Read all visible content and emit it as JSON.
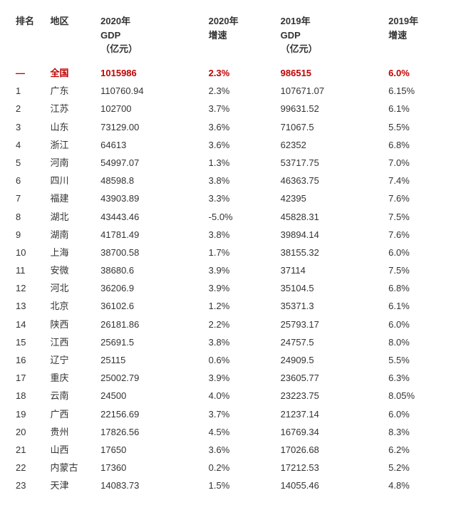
{
  "table": {
    "columns": [
      {
        "key": "rank",
        "label": "排名",
        "class": "col-rank"
      },
      {
        "key": "region",
        "label": "地区",
        "class": "col-region"
      },
      {
        "key": "gdp2020",
        "label": "2020年\nGDP\n（亿元）",
        "class": "col-gdp20"
      },
      {
        "key": "growth2020",
        "label": "2020年\n增速",
        "class": "col-growth20"
      },
      {
        "key": "gdp2019",
        "label": "2019年\nGDP\n（亿元）",
        "class": "col-gdp19"
      },
      {
        "key": "growth2019",
        "label": "2019年\n增速",
        "class": "col-growth19"
      }
    ],
    "highlight_row": {
      "rank": "—",
      "region": "全国",
      "gdp2020": "1015986",
      "growth2020": "2.3%",
      "gdp2019": "986515",
      "growth2019": "6.0%"
    },
    "rows": [
      {
        "rank": "1",
        "region": "广东",
        "gdp2020": "110760.94",
        "growth2020": "2.3%",
        "gdp2019": "107671.07",
        "growth2019": "6.15%"
      },
      {
        "rank": "2",
        "region": "江苏",
        "gdp2020": "102700",
        "growth2020": "3.7%",
        "gdp2019": "99631.52",
        "growth2019": "6.1%"
      },
      {
        "rank": "3",
        "region": "山东",
        "gdp2020": "73129.00",
        "growth2020": "3.6%",
        "gdp2019": "71067.5",
        "growth2019": "5.5%"
      },
      {
        "rank": "4",
        "region": "浙江",
        "gdp2020": "64613",
        "growth2020": "3.6%",
        "gdp2019": "62352",
        "growth2019": "6.8%"
      },
      {
        "rank": "5",
        "region": "河南",
        "gdp2020": "54997.07",
        "growth2020": "1.3%",
        "gdp2019": "53717.75",
        "growth2019": "7.0%"
      },
      {
        "rank": "6",
        "region": "四川",
        "gdp2020": "48598.8",
        "growth2020": "3.8%",
        "gdp2019": "46363.75",
        "growth2019": "7.4%"
      },
      {
        "rank": "7",
        "region": "福建",
        "gdp2020": "43903.89",
        "growth2020": "3.3%",
        "gdp2019": "42395",
        "growth2019": "7.6%"
      },
      {
        "rank": "8",
        "region": "湖北",
        "gdp2020": "43443.46",
        "growth2020": "-5.0%",
        "gdp2019": "45828.31",
        "growth2019": "7.5%"
      },
      {
        "rank": "9",
        "region": "湖南",
        "gdp2020": "41781.49",
        "growth2020": "3.8%",
        "gdp2019": "39894.14",
        "growth2019": "7.6%"
      },
      {
        "rank": "10",
        "region": "上海",
        "gdp2020": "38700.58",
        "growth2020": "1.7%",
        "gdp2019": "38155.32",
        "growth2019": "6.0%"
      },
      {
        "rank": "11",
        "region": "安微",
        "gdp2020": "38680.6",
        "growth2020": "3.9%",
        "gdp2019": "37114",
        "growth2019": "7.5%"
      },
      {
        "rank": "12",
        "region": "河北",
        "gdp2020": "36206.9",
        "growth2020": "3.9%",
        "gdp2019": "35104.5",
        "growth2019": "6.8%"
      },
      {
        "rank": "13",
        "region": "北京",
        "gdp2020": "36102.6",
        "growth2020": "1.2%",
        "gdp2019": "35371.3",
        "growth2019": "6.1%"
      },
      {
        "rank": "14",
        "region": "陕西",
        "gdp2020": "26181.86",
        "growth2020": "2.2%",
        "gdp2019": "25793.17",
        "growth2019": "6.0%"
      },
      {
        "rank": "15",
        "region": "江西",
        "gdp2020": "25691.5",
        "growth2020": "3.8%",
        "gdp2019": "24757.5",
        "growth2019": "8.0%"
      },
      {
        "rank": "16",
        "region": "辽宁",
        "gdp2020": "25115",
        "growth2020": "0.6%",
        "gdp2019": "24909.5",
        "growth2019": "5.5%"
      },
      {
        "rank": "17",
        "region": "重庆",
        "gdp2020": "25002.79",
        "growth2020": "3.9%",
        "gdp2019": "23605.77",
        "growth2019": "6.3%"
      },
      {
        "rank": "18",
        "region": "云南",
        "gdp2020": "24500",
        "growth2020": "4.0%",
        "gdp2019": "23223.75",
        "growth2019": "8.05%"
      },
      {
        "rank": "19",
        "region": "广西",
        "gdp2020": "22156.69",
        "growth2020": "3.7%",
        "gdp2019": "21237.14",
        "growth2019": "6.0%"
      },
      {
        "rank": "20",
        "region": "贵州",
        "gdp2020": "17826.56",
        "growth2020": "4.5%",
        "gdp2019": "16769.34",
        "growth2019": "8.3%"
      },
      {
        "rank": "21",
        "region": "山西",
        "gdp2020": "17650",
        "growth2020": "3.6%",
        "gdp2019": "17026.68",
        "growth2019": "6.2%"
      },
      {
        "rank": "22",
        "region": "内蒙古",
        "gdp2020": "17360",
        "growth2020": "0.2%",
        "gdp2019": "17212.53",
        "growth2019": "5.2%"
      },
      {
        "rank": "23",
        "region": "天津",
        "gdp2020": "14083.73",
        "growth2020": "1.5%",
        "gdp2019": "14055.46",
        "growth2019": "4.8%"
      }
    ],
    "colors": {
      "text": "#333333",
      "highlight": "#c00000",
      "background": "#ffffff"
    },
    "typography": {
      "font_family": "Microsoft YaHei",
      "font_size_body": 13,
      "font_size_header": 13,
      "header_weight": "bold"
    }
  }
}
